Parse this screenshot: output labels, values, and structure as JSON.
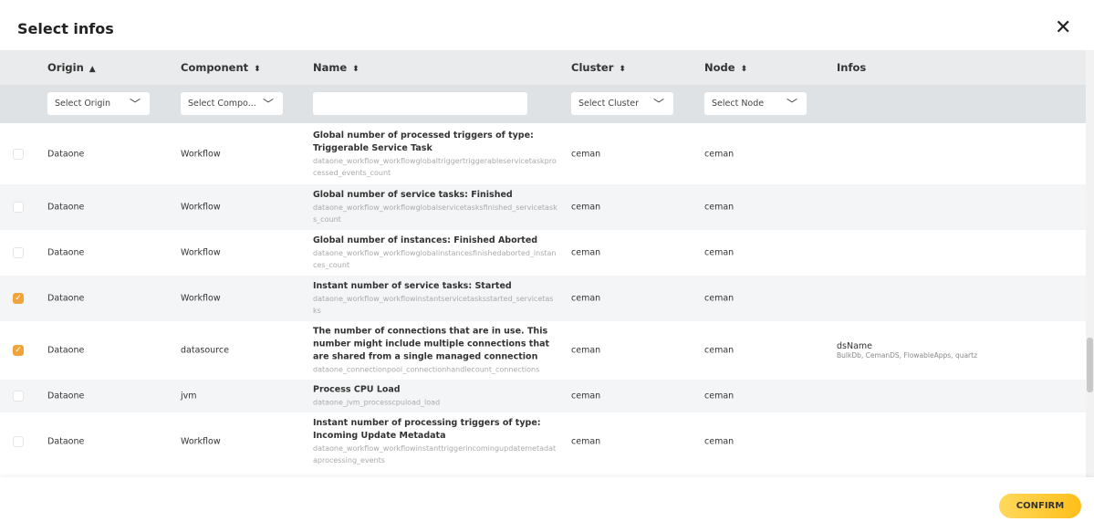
{
  "dialog": {
    "title": "Select infos",
    "close_icon": "close-icon",
    "confirm_label": "CONFIRM",
    "accent": "#f0a43a",
    "confirm_color": "#ffc726"
  },
  "columns": [
    {
      "label": "Origin",
      "sort": "▲"
    },
    {
      "label": "Component",
      "sort": "⬍"
    },
    {
      "label": "Name",
      "sort": "⬍"
    },
    {
      "label": "Cluster",
      "sort": "⬍"
    },
    {
      "label": "Node",
      "sort": "⬍"
    },
    {
      "label": "Infos",
      "sort": ""
    }
  ],
  "filters": {
    "origin": "Select Origin",
    "component": "Select Compo...",
    "name": "",
    "cluster": "Select Cluster",
    "node": "Select Node"
  },
  "rows": [
    {
      "checked": false,
      "origin": "Dataone",
      "component": "Workflow",
      "name": "Global number of processed triggers of type: Triggerable Service Task",
      "key": "dataone_workflow_workflowglobaltriggertriggerableservicetaskprocessed_events_count",
      "cluster": "ceman",
      "node": "ceman",
      "info_key": "",
      "info_val": ""
    },
    {
      "checked": false,
      "origin": "Dataone",
      "component": "Workflow",
      "name": "Global number of service tasks: Finished",
      "key": "dataone_workflow_workflowglobalservicetasksfinished_servicetasks_count",
      "cluster": "ceman",
      "node": "ceman",
      "info_key": "",
      "info_val": ""
    },
    {
      "checked": false,
      "origin": "Dataone",
      "component": "Workflow",
      "name": "Global number of instances: Finished Aborted",
      "key": "dataone_workflow_workflowglobalinstancesfinishedaborted_instances_count",
      "cluster": "ceman",
      "node": "ceman",
      "info_key": "",
      "info_val": ""
    },
    {
      "checked": true,
      "origin": "Dataone",
      "component": "Workflow",
      "name": "Instant number of service tasks: Started",
      "key": "dataone_workflow_workflowinstantservicetasksstarted_servicetasks",
      "cluster": "ceman",
      "node": "ceman",
      "info_key": "",
      "info_val": ""
    },
    {
      "checked": true,
      "origin": "Dataone",
      "component": "datasource",
      "name": "The number of connections that are in use. This number might include multiple connections that are shared from a single managed connection",
      "key": "dataone_connectionpool_connectionhandlecount_connections",
      "cluster": "ceman",
      "node": "ceman",
      "info_key": "dsName",
      "info_val": "BulkDb, CemanDS, FlowableApps, quartz"
    },
    {
      "checked": false,
      "origin": "Dataone",
      "component": "jvm",
      "name": "Process CPU Load",
      "key": "dataone_jvm_processcpuload_load",
      "cluster": "ceman",
      "node": "ceman",
      "info_key": "",
      "info_val": ""
    },
    {
      "checked": false,
      "origin": "Dataone",
      "component": "Workflow",
      "name": "Instant number of processing triggers of type: Incoming Update Metadata",
      "key": "dataone_workflow_workflowinstanttriggerincomingupdatemetadataprocessing_events",
      "cluster": "ceman",
      "node": "ceman",
      "info_key": "",
      "info_val": ""
    }
  ]
}
